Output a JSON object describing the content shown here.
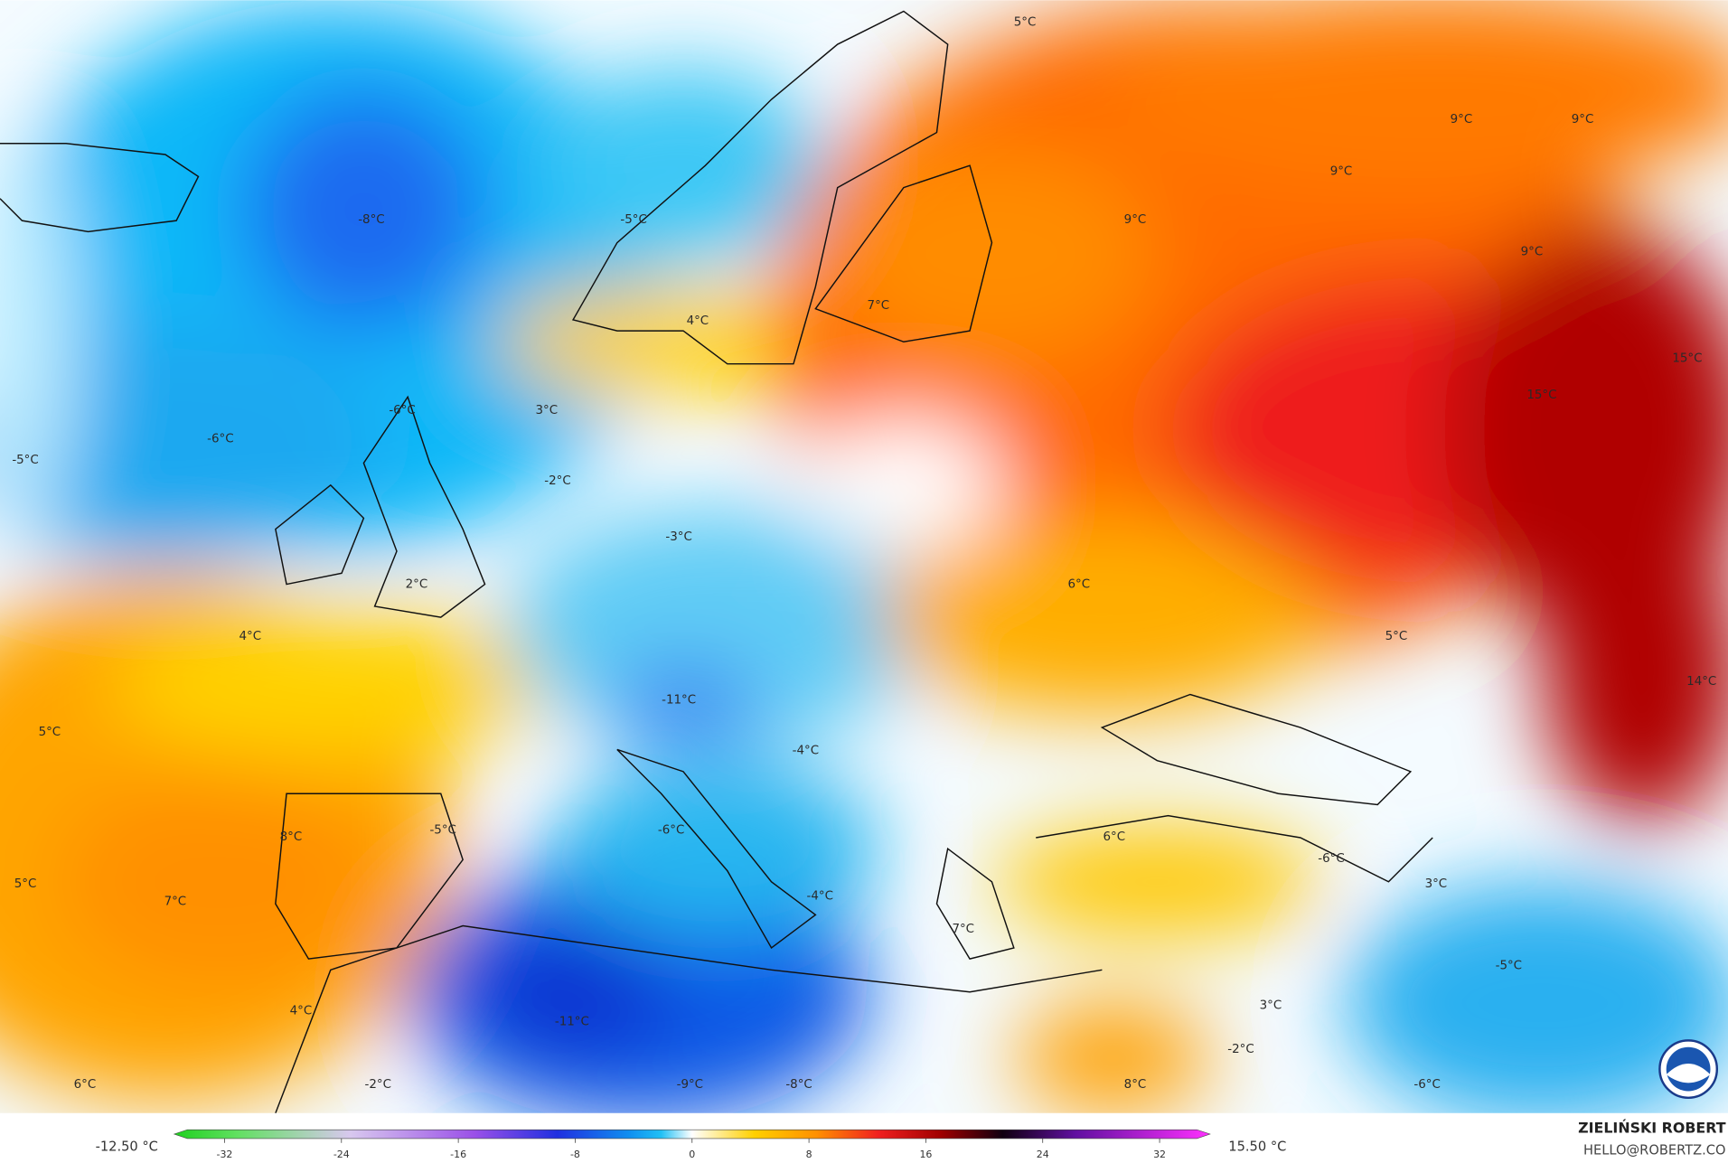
{
  "map": {
    "labels": [
      "-8°C",
      "-5°C",
      "9°C",
      "9°C",
      "9°C",
      "9°C",
      "9°C",
      "5°C",
      "4°C",
      "7°C",
      "3°C",
      "-6°C",
      "-6°C",
      "-5°C",
      "-2°C",
      "-3°C",
      "15°C",
      "15°C",
      "2°C",
      "6°C",
      "4°C",
      "5°C",
      "-11°C",
      "14°C",
      "5°C",
      "-4°C",
      "-5°C",
      "-6°C",
      "8°C",
      "6°C",
      "-6°C",
      "3°C",
      "5°C",
      "7°C",
      "-4°C",
      "7°C",
      "-5°C",
      "4°C",
      "3°C",
      "-11°C",
      "-2°C",
      "6°C",
      "-2°C",
      "-9°C",
      "-8°C",
      "8°C",
      "-6°C"
    ]
  },
  "colorbar": {
    "min_label": "-12.50 °C",
    "max_label": "15.50 °C",
    "clim": [
      -35,
      35
    ],
    "ticks": [
      -32,
      -24,
      -16,
      -8,
      0,
      8,
      16,
      24,
      32
    ]
  },
  "credit": {
    "name": "ZIELIŃSKI ROBERT",
    "email": "HELLO@ROBERTZ.CO"
  }
}
